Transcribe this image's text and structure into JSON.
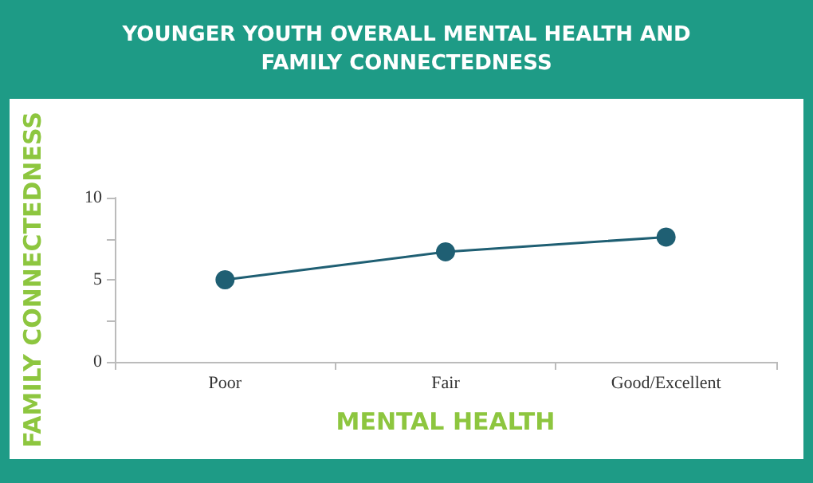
{
  "chart_data": {
    "type": "line",
    "title": "YOUNGER YOUTH OVERALL MENTAL HEALTH AND\nFAMILY CONNECTEDNESS",
    "xlabel": "MENTAL HEALTH",
    "ylabel": "FAMILY CONNECTEDNESS",
    "categories": [
      "Poor",
      "Fair",
      "Good/Excellent"
    ],
    "series": [
      {
        "color": "#1f5f73",
        "values": [
          5.0,
          6.7,
          7.6
        ]
      }
    ],
    "ylim": [
      0,
      10
    ],
    "yticks": [
      0,
      {
        "value": 2.5,
        "label": null
      },
      5,
      {
        "value": 7.5,
        "label": null
      },
      10
    ],
    "grid": false,
    "marker": "circle",
    "line_style": "solid"
  }
}
